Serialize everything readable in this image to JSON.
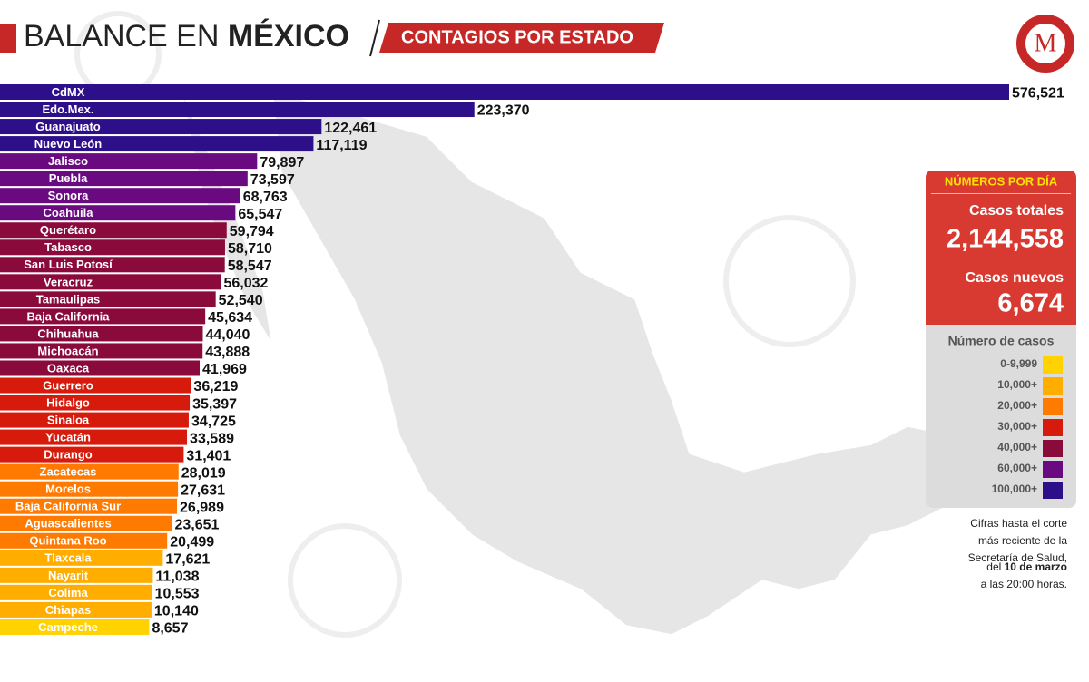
{
  "header": {
    "title_light": "BALANCE EN",
    "title_bold": "MÉXICO",
    "banner": "CONTAGIOS POR ESTADO",
    "logo": "M"
  },
  "chart_data": {
    "type": "bar",
    "orientation": "horizontal",
    "categories": [
      "CdMX",
      "Edo.Mex.",
      "Guanajuato",
      "Nuevo León",
      "Jalisco",
      "Puebla",
      "Sonora",
      "Coahuila",
      "Querétaro",
      "Tabasco",
      "San Luis Potosí",
      "Veracruz",
      "Tamaulipas",
      "Baja California",
      "Chihuahua",
      "Michoacán",
      "Oaxaca",
      "Guerrero",
      "Hidalgo",
      "Sinaloa",
      "Yucatán",
      "Durango",
      "Zacatecas",
      "Morelos",
      "Baja California Sur",
      "Aguascalientes",
      "Quintana Roo",
      "Tlaxcala",
      "Nayarit",
      "Colima",
      "Chiapas",
      "Campeche"
    ],
    "values": [
      576521,
      223370,
      122461,
      117119,
      79897,
      73597,
      68763,
      65547,
      59794,
      58710,
      58547,
      56032,
      52540,
      45634,
      44040,
      43888,
      41969,
      36219,
      35397,
      34725,
      33589,
      31401,
      28019,
      27631,
      26989,
      23651,
      20499,
      17621,
      11038,
      10553,
      10140,
      8657
    ],
    "value_labels": [
      "576,521",
      "223,370",
      "122,461",
      "117,119",
      "79,897",
      "73,597",
      "68,763",
      "65,547",
      "59,794",
      "58,710",
      "58,547",
      "56,032",
      "52,540",
      "45,634",
      "44,040",
      "43,888",
      "41,969",
      "36,219",
      "35,397",
      "34,725",
      "33,589",
      "31,401",
      "28,019",
      "27,631",
      "26,989",
      "23,651",
      "20,499",
      "17,621",
      "11,038",
      "10,553",
      "10,140",
      "8,657"
    ],
    "legend_title": "Número de casos",
    "legend": [
      {
        "threshold": {
          "value": 0,
          "label": "0-9,999"
        },
        "color": "#ffd200"
      },
      {
        "threshold": {
          "value": 10000,
          "label": "10,000+"
        },
        "color": "#ffae00"
      },
      {
        "threshold": {
          "value": 20000,
          "label": "20,000+"
        },
        "color": "#ff7a00"
      },
      {
        "threshold": {
          "value": 30000,
          "label": "30,000+"
        },
        "color": "#d61a0c"
      },
      {
        "threshold": {
          "value": 40000,
          "label": "40,000+"
        },
        "color": "#8a0a3c"
      },
      {
        "threshold": {
          "value": 60000,
          "label": "60,000+"
        },
        "color": "#6a0a80"
      },
      {
        "threshold": {
          "value": 100000,
          "label": "100,000+"
        },
        "color": "#2d0f8a"
      }
    ]
  },
  "panel": {
    "title": "NÚMEROS POR DÍA",
    "total_label": "Casos totales",
    "total": "2,144,558",
    "new_label": "Casos nuevos",
    "new": "6,674"
  },
  "note": {
    "lines": [
      "Cifras hasta el corte",
      "más reciente de la",
      "Secretaría de Salud,"
    ],
    "date_prefix": "del",
    "date": "10 de marzo",
    "last": "a las 20:00 horas."
  }
}
